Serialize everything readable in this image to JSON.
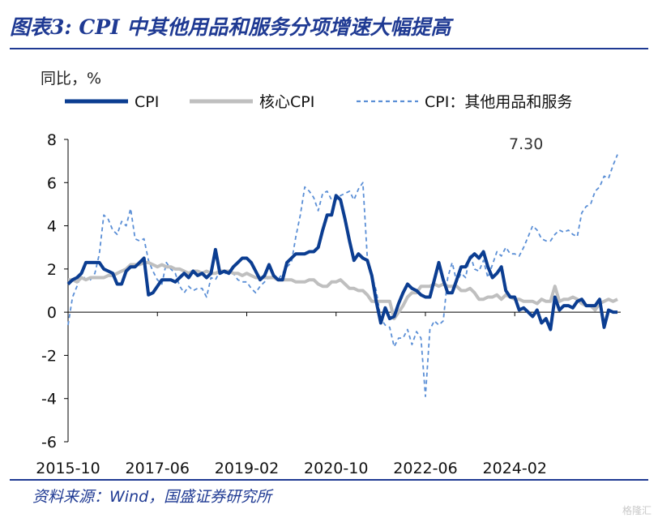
{
  "header": {
    "title": "图表3:  CPI 中其他用品和服务分项增速大幅提高"
  },
  "unit_label": "同比，%",
  "source": "资料来源：Wind，国盛证券研究所",
  "watermark": "格隆汇",
  "colors": {
    "cpi": "#0b3d91",
    "core": "#bfbfbf",
    "other": "#5b8fd6",
    "title": "#1f3a93"
  },
  "chart_data": {
    "type": "line",
    "title": "",
    "xlabel": "",
    "ylabel": "同比，%",
    "ylim": [
      -6,
      8
    ],
    "yticks": [
      -6,
      -4,
      -2,
      0,
      2,
      4,
      6,
      8
    ],
    "xticks": [
      "2015-10",
      "2017-06",
      "2019-02",
      "2020-10",
      "2022-06",
      "2024-02"
    ],
    "x_start": "2015-10",
    "x_end": "2024-12",
    "grid": false,
    "legend_position": "top",
    "annotations": [
      {
        "text": "7.30",
        "x": "2024-12",
        "y": 7.3
      }
    ],
    "series": [
      {
        "name": "CPI",
        "style": "solid",
        "values": [
          1.3,
          1.5,
          1.6,
          1.8,
          2.3,
          2.3,
          2.3,
          2.3,
          2.0,
          1.9,
          1.8,
          1.3,
          1.3,
          1.9,
          2.1,
          2.1,
          2.3,
          2.5,
          0.8,
          0.9,
          1.2,
          1.5,
          1.5,
          1.5,
          1.4,
          1.6,
          1.8,
          1.6,
          1.9,
          1.7,
          1.8,
          1.6,
          1.8,
          2.9,
          1.8,
          1.9,
          1.8,
          2.1,
          2.3,
          2.5,
          2.5,
          2.3,
          1.9,
          1.5,
          1.7,
          2.2,
          1.7,
          1.5,
          1.5,
          2.3,
          2.5,
          2.7,
          2.7,
          2.7,
          2.8,
          2.8,
          3.0,
          3.8,
          4.5,
          4.5,
          5.4,
          5.2,
          4.3,
          3.3,
          2.4,
          2.7,
          2.5,
          2.4,
          1.7,
          0.5,
          -0.5,
          0.2,
          -0.3,
          -0.2,
          0.4,
          0.9,
          1.3,
          1.1,
          1.0,
          0.8,
          0.7,
          0.7,
          1.5,
          2.3,
          1.5,
          0.9,
          0.9,
          1.5,
          2.1,
          2.1,
          2.5,
          2.7,
          2.5,
          2.8,
          2.1,
          1.6,
          1.8,
          2.1,
          1.0,
          0.7,
          0.7,
          0.1,
          0.2,
          0.0,
          -0.2,
          0.1,
          -0.5,
          -0.3,
          -0.8,
          0.7,
          0.1,
          0.3,
          0.3,
          0.2,
          0.5,
          0.6,
          0.3,
          0.3,
          0.3,
          0.6,
          -0.7,
          0.1,
          0.0,
          0.0
        ]
      },
      {
        "name": "核心CPI",
        "style": "solid",
        "values": [
          1.5,
          1.5,
          1.4,
          1.6,
          1.5,
          1.6,
          1.6,
          1.6,
          1.6,
          1.7,
          1.7,
          1.8,
          1.9,
          2.0,
          2.2,
          2.2,
          2.2,
          2.3,
          2.3,
          2.2,
          2.1,
          2.2,
          2.1,
          2.1,
          2.0,
          2.0,
          1.9,
          1.8,
          1.9,
          1.9,
          1.8,
          1.9,
          1.8,
          1.8,
          1.9,
          1.9,
          1.9,
          1.8,
          1.8,
          1.7,
          1.8,
          1.7,
          1.6,
          1.6,
          1.6,
          1.6,
          1.6,
          1.5,
          1.5,
          1.5,
          1.5,
          1.4,
          1.4,
          1.4,
          1.5,
          1.5,
          1.3,
          1.2,
          1.2,
          1.4,
          1.4,
          1.5,
          1.3,
          1.1,
          1.1,
          1.0,
          1.0,
          0.8,
          0.5,
          0.5,
          0.5,
          0.5,
          0.5,
          -0.3,
          0.0,
          0.3,
          0.7,
          0.9,
          0.9,
          1.2,
          1.2,
          1.2,
          1.3,
          1.2,
          1.3,
          1.2,
          1.2,
          1.2,
          1.0,
          1.0,
          1.1,
          0.9,
          0.6,
          0.6,
          0.7,
          0.7,
          0.8,
          0.6,
          0.8,
          0.7,
          0.6,
          0.6,
          0.5,
          0.5,
          0.5,
          0.4,
          0.6,
          0.5,
          0.5,
          1.2,
          0.5,
          0.6,
          0.6,
          0.7,
          0.6,
          0.4,
          0.3,
          0.3,
          0.1,
          0.4,
          0.5,
          0.6,
          0.5,
          0.6
        ]
      },
      {
        "name": "CPI：其他用品和服务",
        "style": "dashed",
        "values": [
          -0.6,
          0.7,
          1.2,
          1.8,
          1.5,
          1.5,
          1.8,
          2.7,
          4.5,
          4.3,
          3.8,
          3.6,
          4.2,
          4.0,
          4.8,
          3.4,
          3.3,
          3.4,
          2.4,
          1.9,
          1.5,
          1.3,
          2.3,
          2.0,
          1.8,
          1.2,
          0.9,
          1.2,
          1.0,
          1.1,
          1.1,
          0.7,
          1.6,
          1.5,
          1.9,
          1.8,
          1.8,
          1.8,
          1.5,
          1.4,
          1.4,
          1.1,
          0.9,
          1.2,
          1.4,
          1.6,
          1.7,
          1.5,
          1.8,
          2.1,
          2.3,
          3.5,
          4.5,
          5.8,
          5.6,
          5.3,
          4.7,
          5.5,
          5.6,
          5.2,
          5.2,
          5.4,
          5.5,
          5.6,
          5.2,
          5.7,
          6.0,
          2.5,
          1.7,
          1.0,
          -0.3,
          -0.6,
          -0.7,
          -1.6,
          -1.2,
          -1.2,
          -0.8,
          -1.5,
          -0.9,
          -1.2,
          -3.9,
          -0.8,
          -0.4,
          -0.6,
          -0.4,
          1.6,
          2.3,
          1.4,
          1.8,
          1.6,
          2.7,
          2.0,
          1.9,
          2.4,
          1.6,
          2.2,
          2.8,
          2.6,
          3.0,
          2.7,
          2.7,
          2.6,
          3.0,
          3.5,
          4.0,
          3.8,
          3.4,
          3.3,
          3.3,
          3.6,
          3.8,
          3.7,
          3.8,
          3.6,
          3.5,
          4.6,
          4.9,
          5.0,
          5.6,
          5.8,
          6.3,
          6.2,
          6.8,
          7.3
        ]
      }
    ]
  }
}
